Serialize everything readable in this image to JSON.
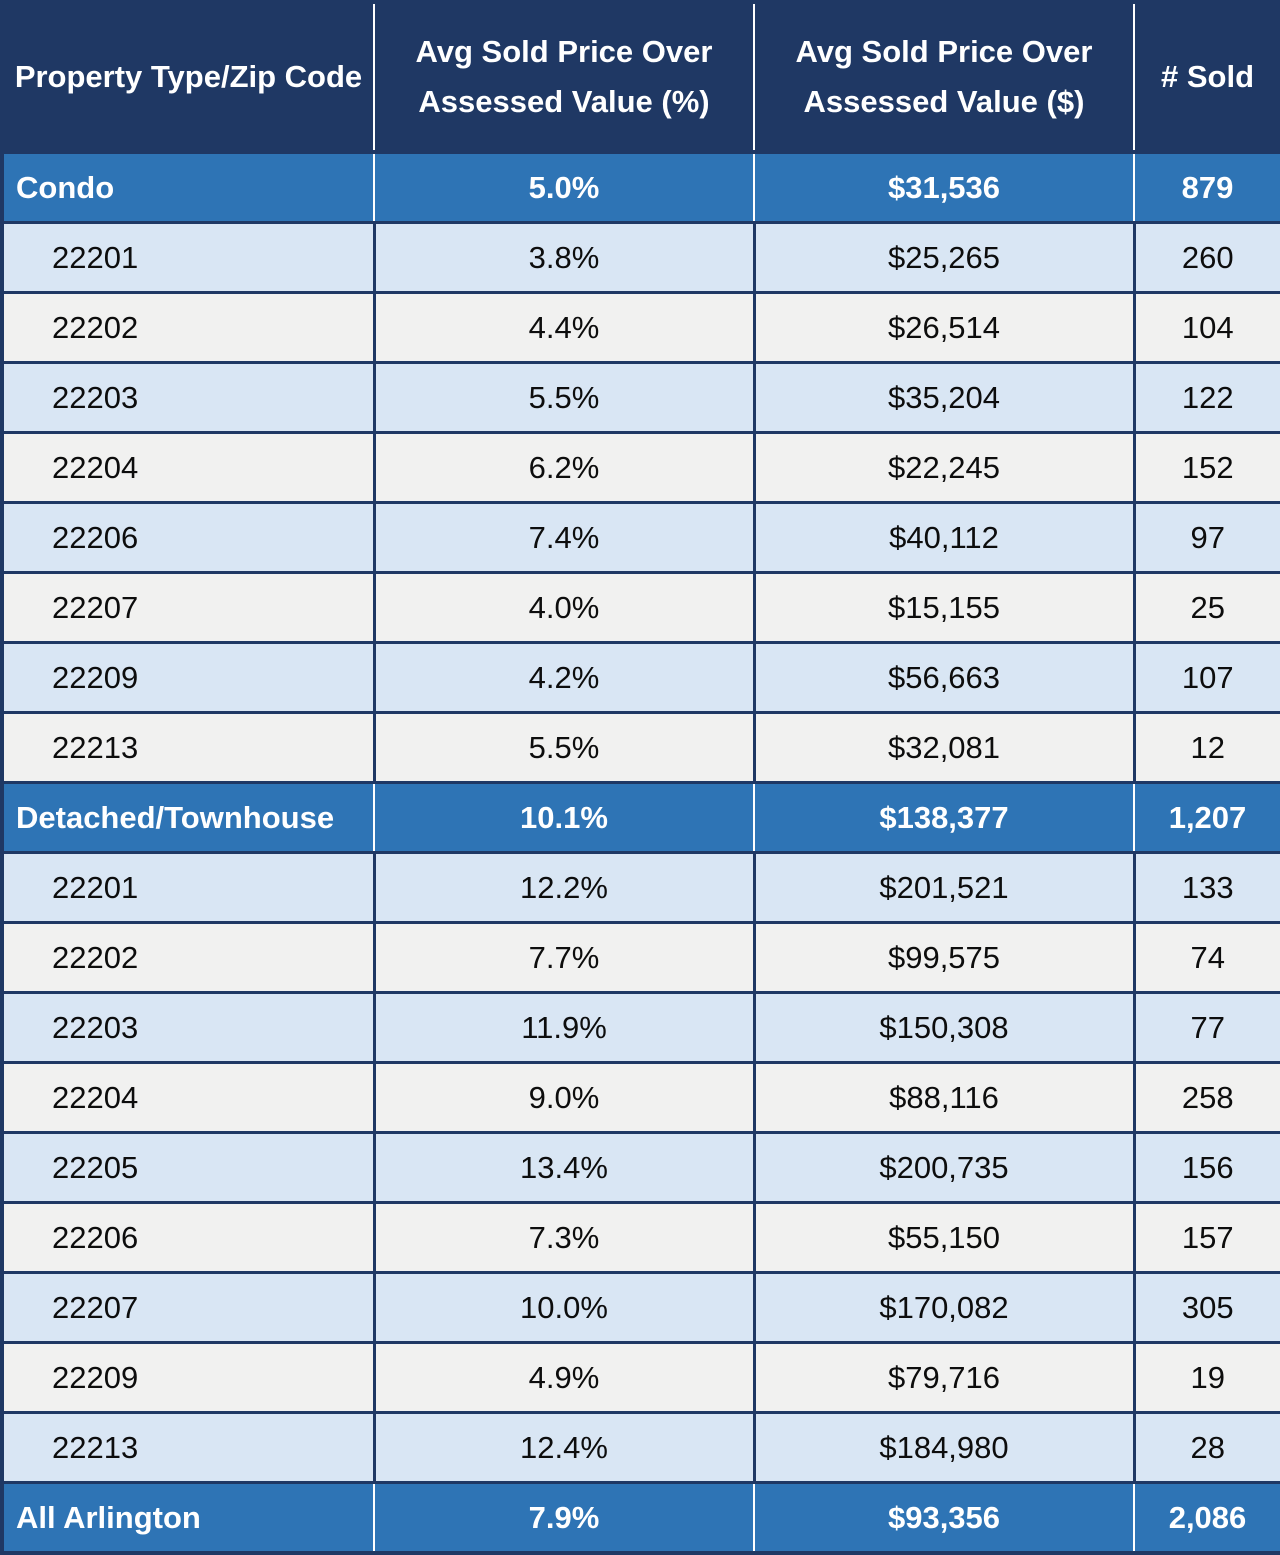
{
  "colors": {
    "header_bg": "#1F3864",
    "section_bg": "#2E74B5",
    "row_light_blue": "#D9E6F4",
    "row_light_gray": "#F1F1F0",
    "border": "#1F3864",
    "header_text": "#FFFFFF",
    "body_text": "#0D0D0D"
  },
  "table": {
    "columns": [
      "Property Type/Zip Code",
      "Avg Sold Price Over Assessed Value (%)",
      "Avg Sold Price Over Assessed Value ($)",
      "# Sold"
    ],
    "rows": [
      {
        "label": "Condo",
        "pct": "5.0%",
        "amt": "$31,536",
        "sold": "879",
        "kind": "section"
      },
      {
        "label": "22201",
        "pct": "3.8%",
        "amt": "$25,265",
        "sold": "260",
        "kind": "zip"
      },
      {
        "label": "22202",
        "pct": "4.4%",
        "amt": "$26,514",
        "sold": "104",
        "kind": "zip"
      },
      {
        "label": "22203",
        "pct": "5.5%",
        "amt": "$35,204",
        "sold": "122",
        "kind": "zip"
      },
      {
        "label": "22204",
        "pct": "6.2%",
        "amt": "$22,245",
        "sold": "152",
        "kind": "zip"
      },
      {
        "label": "22206",
        "pct": "7.4%",
        "amt": "$40,112",
        "sold": "97",
        "kind": "zip"
      },
      {
        "label": "22207",
        "pct": "4.0%",
        "amt": "$15,155",
        "sold": "25",
        "kind": "zip"
      },
      {
        "label": "22209",
        "pct": "4.2%",
        "amt": "$56,663",
        "sold": "107",
        "kind": "zip"
      },
      {
        "label": "22213",
        "pct": "5.5%",
        "amt": "$32,081",
        "sold": "12",
        "kind": "zip"
      },
      {
        "label": "Detached/Townhouse",
        "pct": "10.1%",
        "amt": "$138,377",
        "sold": "1,207",
        "kind": "section"
      },
      {
        "label": "22201",
        "pct": "12.2%",
        "amt": "$201,521",
        "sold": "133",
        "kind": "zip"
      },
      {
        "label": "22202",
        "pct": "7.7%",
        "amt": "$99,575",
        "sold": "74",
        "kind": "zip"
      },
      {
        "label": "22203",
        "pct": "11.9%",
        "amt": "$150,308",
        "sold": "77",
        "kind": "zip"
      },
      {
        "label": "22204",
        "pct": "9.0%",
        "amt": "$88,116",
        "sold": "258",
        "kind": "zip"
      },
      {
        "label": "22205",
        "pct": "13.4%",
        "amt": "$200,735",
        "sold": "156",
        "kind": "zip"
      },
      {
        "label": "22206",
        "pct": "7.3%",
        "amt": "$55,150",
        "sold": "157",
        "kind": "zip"
      },
      {
        "label": "22207",
        "pct": "10.0%",
        "amt": "$170,082",
        "sold": "305",
        "kind": "zip"
      },
      {
        "label": "22209",
        "pct": "4.9%",
        "amt": "$79,716",
        "sold": "19",
        "kind": "zip"
      },
      {
        "label": "22213",
        "pct": "12.4%",
        "amt": "$184,980",
        "sold": "28",
        "kind": "zip"
      },
      {
        "label": "All Arlington",
        "pct": "7.9%",
        "amt": "$93,356",
        "sold": "2,086",
        "kind": "section"
      }
    ]
  },
  "chart_data": {
    "type": "table",
    "columns": [
      "Property Type/Zip Code",
      "Avg Sold Price Over Assessed Value (%)",
      "Avg Sold Price Over Assessed Value ($)",
      "# Sold"
    ],
    "groups": [
      {
        "name": "Condo",
        "summary": {
          "pct_over_assessed": 5.0,
          "dollars_over_assessed": 31536,
          "num_sold": 879
        },
        "zips": [
          {
            "zip": "22201",
            "pct_over_assessed": 3.8,
            "dollars_over_assessed": 25265,
            "num_sold": 260
          },
          {
            "zip": "22202",
            "pct_over_assessed": 4.4,
            "dollars_over_assessed": 26514,
            "num_sold": 104
          },
          {
            "zip": "22203",
            "pct_over_assessed": 5.5,
            "dollars_over_assessed": 35204,
            "num_sold": 122
          },
          {
            "zip": "22204",
            "pct_over_assessed": 6.2,
            "dollars_over_assessed": 22245,
            "num_sold": 152
          },
          {
            "zip": "22206",
            "pct_over_assessed": 7.4,
            "dollars_over_assessed": 40112,
            "num_sold": 97
          },
          {
            "zip": "22207",
            "pct_over_assessed": 4.0,
            "dollars_over_assessed": 15155,
            "num_sold": 25
          },
          {
            "zip": "22209",
            "pct_over_assessed": 4.2,
            "dollars_over_assessed": 56663,
            "num_sold": 107
          },
          {
            "zip": "22213",
            "pct_over_assessed": 5.5,
            "dollars_over_assessed": 32081,
            "num_sold": 12
          }
        ]
      },
      {
        "name": "Detached/Townhouse",
        "summary": {
          "pct_over_assessed": 10.1,
          "dollars_over_assessed": 138377,
          "num_sold": 1207
        },
        "zips": [
          {
            "zip": "22201",
            "pct_over_assessed": 12.2,
            "dollars_over_assessed": 201521,
            "num_sold": 133
          },
          {
            "zip": "22202",
            "pct_over_assessed": 7.7,
            "dollars_over_assessed": 99575,
            "num_sold": 74
          },
          {
            "zip": "22203",
            "pct_over_assessed": 11.9,
            "dollars_over_assessed": 150308,
            "num_sold": 77
          },
          {
            "zip": "22204",
            "pct_over_assessed": 9.0,
            "dollars_over_assessed": 88116,
            "num_sold": 258
          },
          {
            "zip": "22205",
            "pct_over_assessed": 13.4,
            "dollars_over_assessed": 200735,
            "num_sold": 156
          },
          {
            "zip": "22206",
            "pct_over_assessed": 7.3,
            "dollars_over_assessed": 55150,
            "num_sold": 157
          },
          {
            "zip": "22207",
            "pct_over_assessed": 10.0,
            "dollars_over_assessed": 170082,
            "num_sold": 305
          },
          {
            "zip": "22209",
            "pct_over_assessed": 4.9,
            "dollars_over_assessed": 79716,
            "num_sold": 19
          },
          {
            "zip": "22213",
            "pct_over_assessed": 12.4,
            "dollars_over_assessed": 184980,
            "num_sold": 28
          }
        ]
      }
    ],
    "total": {
      "name": "All Arlington",
      "pct_over_assessed": 7.9,
      "dollars_over_assessed": 93356,
      "num_sold": 2086
    }
  }
}
